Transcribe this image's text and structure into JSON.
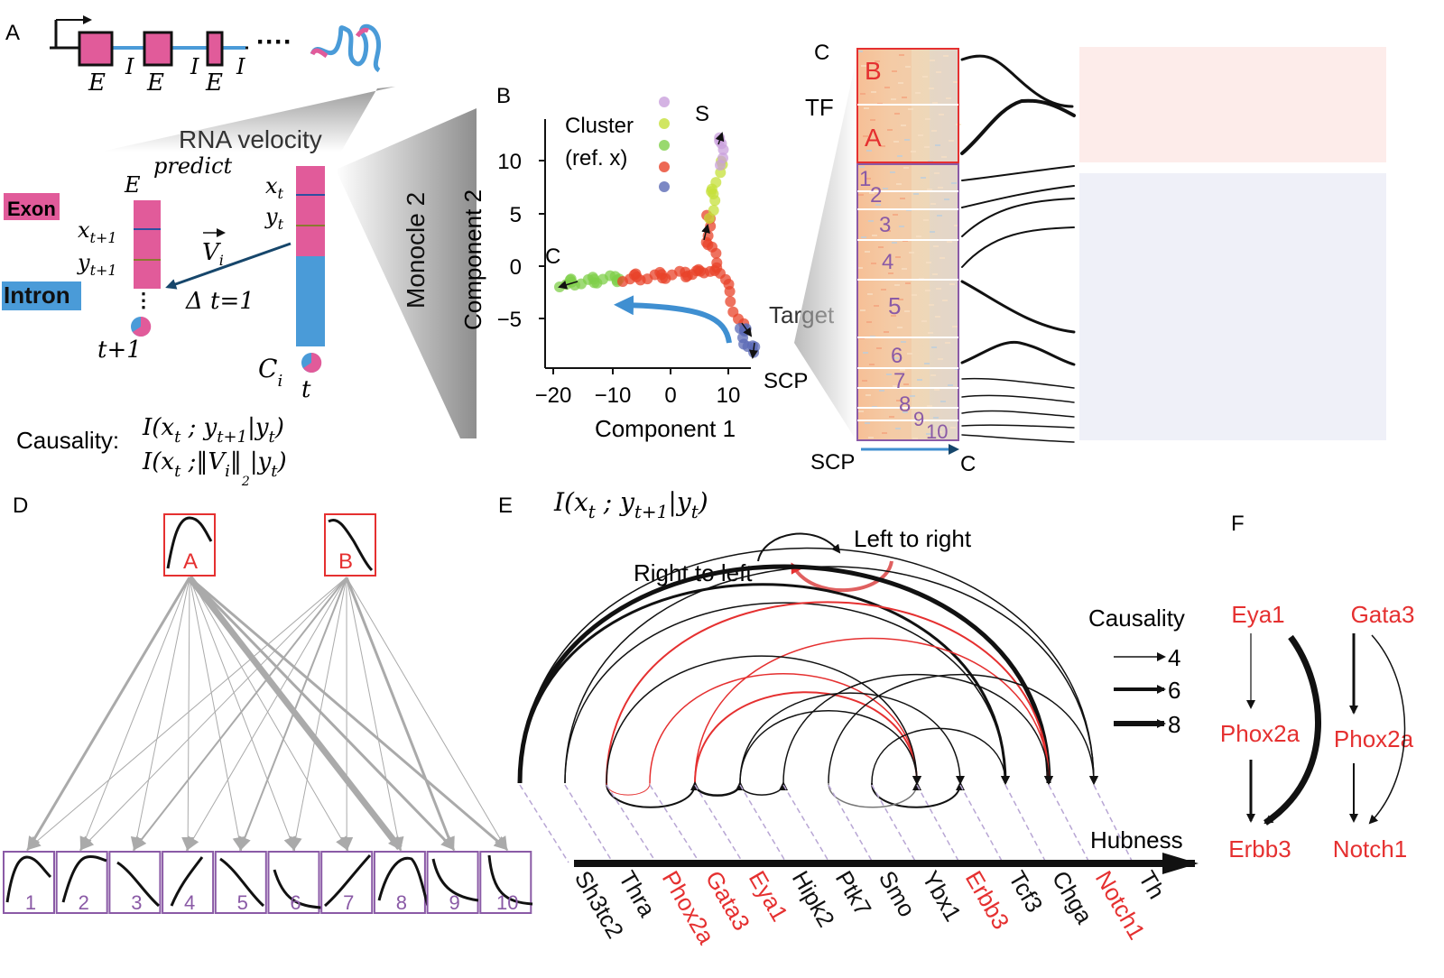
{
  "panel_labels": {
    "a": "A",
    "b": "B",
    "c": "C",
    "d": "D",
    "e": "E",
    "f": "F"
  },
  "panel_a": {
    "gene_exon_labels": [
      "E",
      "E",
      "E"
    ],
    "gene_intron_labels": [
      "I",
      "I",
      "I"
    ],
    "ellipsis": "····",
    "rna_velocity": "RNA velocity",
    "predict": "predict",
    "exon_label": "Exon",
    "intron_label": "Intron",
    "bar_left_label": "E",
    "x_t1": "x",
    "x_t1_sub": "t+1",
    "y_t1": "y",
    "y_t1_sub": "t+1",
    "x_t": "x",
    "x_t_sub": "t",
    "y_t": "y",
    "y_t_sub": "t",
    "vel": "V",
    "vel_sub": "i",
    "delta_t": "Δ t=1",
    "t_plus_1": "t+1",
    "c_i": "C",
    "c_i_sub": "i",
    "t_label": "t",
    "monocle": "Monocle 2",
    "causality_label": "Causality:",
    "causality_f1": "I(x",
    "causality_f1_sub": "t",
    "causality_f1_rest": " ; y",
    "causality_f1_sub2": "t+1",
    "causality_f1_end": "|y",
    "causality_f1_sub3": "t",
    "causality_f1_close": ")",
    "causality_f2": "I(x",
    "causality_f2_sub": "t",
    "causality_f2_rest": " ;‖V",
    "causality_f2_sub2": "i",
    "causality_f2_end": "‖",
    "causality_f2_sub4": "2",
    "causality_f2_tail": "|y",
    "causality_f2_sub3": "t",
    "causality_f2_close": ")"
  },
  "panel_b": {
    "legend_title_1": "Cluster",
    "legend_title_2": "(ref. x)",
    "xlabel": "Component 1",
    "ylabel": "Component 2",
    "xticks": [
      "−20",
      "−10",
      "0",
      "10"
    ],
    "yticks": [
      "10",
      "5",
      "0",
      "−5"
    ],
    "branch_labels": {
      "s": "S",
      "c": "C",
      "target": "Target",
      "scp": "SCP"
    },
    "colors": {
      "purple": "#c9a0dc",
      "yellowgreen": "#c6e03a",
      "green": "#7fcf4a",
      "red": "#e8432a",
      "blue": "#5b6ab5"
    }
  },
  "panel_c": {
    "tf_label": "TF",
    "target_label": "Target",
    "c_top": "C",
    "tf_blocks": [
      "B",
      "A"
    ],
    "target_blocks": [
      "1",
      "2",
      "3",
      "4",
      "5",
      "6",
      "7",
      "8",
      "9",
      "10"
    ],
    "axis_start": "SCP",
    "axis_end": "C"
  },
  "panel_d": {
    "tf_nodes": [
      "A",
      "B"
    ],
    "target_nodes": [
      "1",
      "2",
      "3",
      "4",
      "5",
      "6",
      "7",
      "8",
      "9",
      "10"
    ]
  },
  "panel_e": {
    "formula": "I(x",
    "formula_sub": "t",
    "formula_rest": " ; y",
    "formula_sub2": "t+1",
    "formula_end": "|y",
    "formula_sub3": "t",
    "formula_close": ")",
    "legend_ltr": "Left to right",
    "legend_rtl": "Right to left",
    "causality_title": "Causality",
    "causality_values": [
      "4",
      "6",
      "8"
    ],
    "hubness": "Hubness",
    "genes": [
      {
        "name": "Sh3tc2",
        "highlight": false
      },
      {
        "name": "Thra",
        "highlight": false
      },
      {
        "name": "Phox2a",
        "highlight": true
      },
      {
        "name": "Gata3",
        "highlight": true
      },
      {
        "name": "Eya1",
        "highlight": true
      },
      {
        "name": "Hipk2",
        "highlight": false
      },
      {
        "name": "Ptk7",
        "highlight": false
      },
      {
        "name": "Smo",
        "highlight": false
      },
      {
        "name": "Ybx1",
        "highlight": false
      },
      {
        "name": "Erbb3",
        "highlight": true
      },
      {
        "name": "Tcf3",
        "highlight": false
      },
      {
        "name": "Chga",
        "highlight": false
      },
      {
        "name": "Notch1",
        "highlight": true
      },
      {
        "name": "Th",
        "highlight": false
      }
    ]
  },
  "panel_f": {
    "left": {
      "top": "Eya1",
      "mid": "Phox2a",
      "bottom": "Erbb3"
    },
    "right": {
      "top": "Gata3",
      "mid": "Phox2a",
      "bottom": "Notch1"
    }
  },
  "colors": {
    "exon": "#e15b9a",
    "intron": "#4a9bd8",
    "red": "#e53030",
    "purple": "#8a5aa6",
    "gray": "#aaaaaa"
  }
}
